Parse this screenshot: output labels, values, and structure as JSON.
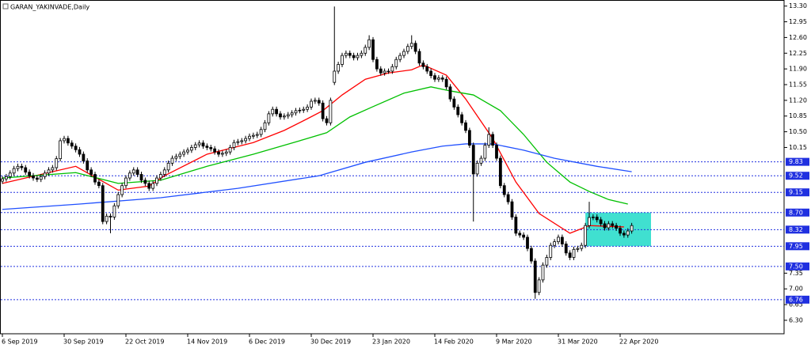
{
  "chart_data": {
    "type": "candlestick",
    "title": "GARAN_YAKINVADE,Daily",
    "categories": [
      "6 Sep 2019",
      null,
      null,
      null,
      null,
      null,
      null,
      null,
      null,
      null,
      null,
      null,
      null,
      null,
      null,
      null,
      "30 Sep 2019",
      null,
      null,
      null,
      null,
      null,
      null,
      null,
      null,
      null,
      null,
      null,
      null,
      null,
      null,
      null,
      "22 Oct 2019",
      null,
      null,
      null,
      null,
      null,
      null,
      null,
      null,
      null,
      null,
      null,
      null,
      null,
      null,
      null,
      "14 Nov 2019",
      null,
      null,
      null,
      null,
      null,
      null,
      null,
      null,
      null,
      null,
      null,
      null,
      null,
      null,
      null,
      "6 Dec 2019",
      null,
      null,
      null,
      null,
      null,
      null,
      null,
      null,
      null,
      null,
      null,
      null,
      null,
      null,
      null,
      "30 Dec 2019",
      null,
      null,
      null,
      null,
      null,
      null,
      null,
      null,
      null,
      null,
      null,
      null,
      null,
      null,
      null,
      "23 Jan 2020",
      null,
      null,
      null,
      null,
      null,
      null,
      null,
      null,
      null,
      null,
      null,
      null,
      null,
      null,
      null,
      "14 Feb 2020",
      null,
      null,
      null,
      null,
      null,
      null,
      null,
      null,
      null,
      null,
      null,
      null,
      null,
      null,
      null,
      "9 Mar 2020",
      null,
      null,
      null,
      null,
      null,
      null,
      null,
      null,
      null,
      null,
      null,
      null,
      null,
      null,
      null,
      "31 Mar 2020",
      null,
      null,
      null,
      null,
      null,
      null,
      null,
      null,
      null,
      null,
      null,
      null,
      null,
      null,
      null,
      "22 Apr 2020",
      null,
      null,
      null
    ],
    "open": [
      9.4,
      9.45,
      9.5,
      9.58,
      9.68,
      9.73,
      9.7,
      9.6,
      9.52,
      9.47,
      9.44,
      9.5,
      9.58,
      9.65,
      9.7,
      9.9,
      10.3,
      10.35,
      10.25,
      10.18,
      10.1,
      10.0,
      9.85,
      9.65,
      9.55,
      9.38,
      9.3,
      8.5,
      8.62,
      8.6,
      8.85,
      9.1,
      9.3,
      9.47,
      9.58,
      9.65,
      9.55,
      9.42,
      9.35,
      9.24,
      9.35,
      9.47,
      9.55,
      9.65,
      9.8,
      9.91,
      9.95,
      10.0,
      10.05,
      10.09,
      10.15,
      10.21,
      10.25,
      10.18,
      10.15,
      10.12,
      10.05,
      10.0,
      10.02,
      10.05,
      10.15,
      10.26,
      10.28,
      10.3,
      10.35,
      10.4,
      10.42,
      10.44,
      10.55,
      10.7,
      10.9,
      11.0,
      10.9,
      10.83,
      10.85,
      10.88,
      10.92,
      10.97,
      10.98,
      11.0,
      11.05,
      11.18,
      11.2,
      11.14,
      10.79,
      10.7,
      11.6,
      11.85,
      12.0,
      12.2,
      12.25,
      12.2,
      12.15,
      12.2,
      12.25,
      12.38,
      12.55,
      12.11,
      11.9,
      11.81,
      11.85,
      11.85,
      11.95,
      12.11,
      12.2,
      12.29,
      12.4,
      12.47,
      12.29,
      12.03,
      11.95,
      11.85,
      11.75,
      11.67,
      11.7,
      11.67,
      11.5,
      11.23,
      11.05,
      10.88,
      10.7,
      10.53,
      10.2,
      9.56,
      9.8,
      9.91,
      10.2,
      10.44,
      10.2,
      9.91,
      9.3,
      9.1,
      8.94,
      8.6,
      8.24,
      8.2,
      8.15,
      7.9,
      7.62,
      6.92,
      7.2,
      7.53,
      7.7,
      7.97,
      8.05,
      8.15,
      8.0,
      7.8,
      7.7,
      7.88,
      7.9,
      7.97,
      8.41,
      8.59,
      8.6,
      8.54,
      8.45,
      8.36,
      8.45,
      8.41,
      8.35,
      8.24,
      8.2,
      8.29
    ],
    "high": [
      9.51,
      9.56,
      9.64,
      9.74,
      9.79,
      9.79,
      9.76,
      9.66,
      9.58,
      9.53,
      9.56,
      9.64,
      9.71,
      9.76,
      9.96,
      10.36,
      10.41,
      10.41,
      10.31,
      10.24,
      10.16,
      10.06,
      9.91,
      9.71,
      9.61,
      9.44,
      9.36,
      8.68,
      8.68,
      8.91,
      9.16,
      9.36,
      9.53,
      9.64,
      9.71,
      9.71,
      9.61,
      9.48,
      9.41,
      9.41,
      9.53,
      9.61,
      9.71,
      9.86,
      9.97,
      10.01,
      10.06,
      10.11,
      10.15,
      10.21,
      10.27,
      10.31,
      10.31,
      10.24,
      10.21,
      10.18,
      10.11,
      10.08,
      10.11,
      10.21,
      10.32,
      10.34,
      10.36,
      10.41,
      10.46,
      10.48,
      10.5,
      10.61,
      10.76,
      10.96,
      11.06,
      11.06,
      10.96,
      10.91,
      10.94,
      10.98,
      11.03,
      11.04,
      11.06,
      11.11,
      11.24,
      11.26,
      11.26,
      11.2,
      10.85,
      11.26,
      13.29,
      12.06,
      12.26,
      12.31,
      12.31,
      12.26,
      12.26,
      12.31,
      12.44,
      12.65,
      12.61,
      12.17,
      11.96,
      11.91,
      11.91,
      12.01,
      12.17,
      12.26,
      12.35,
      12.46,
      12.65,
      12.53,
      12.35,
      12.09,
      12.01,
      11.91,
      11.81,
      11.76,
      11.76,
      11.73,
      11.56,
      11.29,
      11.11,
      10.94,
      10.76,
      10.59,
      10.26,
      9.86,
      9.97,
      10.26,
      10.6,
      10.5,
      10.26,
      9.97,
      9.36,
      9.16,
      9.0,
      8.66,
      8.3,
      8.26,
      8.21,
      7.96,
      7.68,
      7.26,
      7.59,
      7.76,
      8.03,
      8.11,
      8.21,
      8.21,
      8.06,
      7.86,
      7.94,
      7.96,
      8.03,
      8.47,
      8.94,
      8.66,
      8.66,
      8.6,
      8.51,
      8.51,
      8.51,
      8.47,
      8.41,
      8.3,
      8.35,
      8.47
    ],
    "low": [
      9.34,
      9.39,
      9.44,
      9.52,
      9.62,
      9.64,
      9.54,
      9.46,
      9.41,
      9.38,
      9.38,
      9.44,
      9.52,
      9.59,
      9.64,
      9.84,
      10.24,
      10.19,
      10.12,
      10.04,
      9.94,
      9.79,
      9.59,
      9.49,
      9.32,
      9.24,
      8.44,
      8.44,
      8.24,
      8.54,
      8.79,
      9.04,
      9.24,
      9.41,
      9.52,
      9.49,
      9.36,
      9.29,
      9.18,
      9.18,
      9.29,
      9.41,
      9.49,
      9.59,
      9.74,
      9.85,
      9.89,
      9.94,
      9.99,
      10.03,
      10.09,
      10.15,
      10.12,
      10.09,
      10.06,
      9.99,
      9.94,
      9.94,
      9.96,
      9.99,
      10.09,
      10.2,
      10.22,
      10.24,
      10.29,
      10.34,
      10.36,
      10.38,
      10.49,
      10.64,
      10.84,
      10.84,
      10.77,
      10.77,
      10.79,
      10.82,
      10.86,
      10.91,
      10.92,
      10.94,
      10.99,
      11.12,
      11.08,
      10.73,
      10.64,
      10.64,
      11.54,
      11.79,
      11.94,
      12.14,
      12.14,
      12.09,
      12.09,
      12.14,
      12.19,
      12.32,
      12.05,
      11.84,
      11.75,
      11.75,
      11.79,
      11.79,
      11.89,
      12.05,
      12.14,
      12.23,
      12.34,
      12.23,
      11.97,
      11.89,
      11.79,
      11.69,
      11.61,
      11.61,
      11.61,
      11.44,
      11.17,
      10.99,
      10.82,
      10.64,
      10.47,
      10.14,
      8.5,
      9.5,
      9.74,
      9.85,
      10.14,
      10.14,
      9.85,
      9.24,
      9.04,
      8.88,
      8.54,
      8.18,
      8.14,
      8.09,
      7.84,
      7.56,
      6.78,
      6.86,
      7.14,
      7.47,
      7.64,
      7.91,
      7.99,
      7.94,
      7.74,
      7.64,
      7.64,
      7.82,
      7.84,
      7.91,
      8.35,
      8.53,
      8.48,
      8.39,
      8.3,
      8.3,
      8.35,
      8.29,
      8.18,
      8.14,
      8.14,
      8.23
    ],
    "close": [
      9.45,
      9.5,
      9.58,
      9.68,
      9.73,
      9.7,
      9.6,
      9.52,
      9.47,
      9.44,
      9.5,
      9.58,
      9.65,
      9.7,
      9.9,
      10.3,
      10.35,
      10.25,
      10.18,
      10.1,
      10.0,
      9.85,
      9.65,
      9.55,
      9.38,
      9.3,
      8.5,
      8.62,
      8.6,
      8.85,
      9.1,
      9.3,
      9.47,
      9.58,
      9.65,
      9.55,
      9.42,
      9.35,
      9.24,
      9.35,
      9.47,
      9.55,
      9.65,
      9.8,
      9.91,
      9.95,
      10.0,
      10.05,
      10.09,
      10.15,
      10.21,
      10.25,
      10.18,
      10.15,
      10.12,
      10.05,
      10.0,
      10.02,
      10.05,
      10.15,
      10.26,
      10.28,
      10.3,
      10.35,
      10.4,
      10.42,
      10.44,
      10.55,
      10.7,
      10.9,
      11.0,
      10.9,
      10.83,
      10.85,
      10.88,
      10.92,
      10.97,
      10.98,
      11.0,
      11.05,
      11.18,
      11.2,
      11.14,
      10.79,
      10.7,
      11.2,
      11.85,
      12.0,
      12.2,
      12.25,
      12.2,
      12.15,
      12.2,
      12.25,
      12.38,
      12.55,
      12.11,
      11.9,
      11.81,
      11.85,
      11.85,
      11.95,
      12.11,
      12.2,
      12.29,
      12.4,
      12.47,
      12.29,
      12.03,
      11.95,
      11.85,
      11.75,
      11.67,
      11.7,
      11.67,
      11.5,
      11.23,
      11.05,
      10.88,
      10.7,
      10.53,
      10.2,
      9.56,
      9.8,
      9.91,
      10.2,
      10.44,
      10.2,
      9.91,
      9.3,
      9.1,
      8.94,
      8.6,
      8.24,
      8.2,
      8.15,
      7.9,
      7.62,
      6.92,
      7.2,
      7.53,
      7.7,
      7.97,
      8.05,
      8.15,
      8.0,
      7.8,
      7.7,
      7.88,
      7.9,
      7.97,
      8.41,
      8.59,
      8.6,
      8.54,
      8.45,
      8.36,
      8.45,
      8.41,
      8.35,
      8.24,
      8.2,
      8.29,
      8.41
    ],
    "moving_averages": [
      {
        "color": "#ff0000",
        "x": [
          0,
          19,
          30,
          38,
          42,
          53,
          65,
          73,
          79,
          83,
          88,
          94,
          100,
          106,
          109,
          115,
          120,
          127,
          133,
          139,
          147,
          152,
          161
        ],
        "values": [
          9.35,
          9.73,
          9.2,
          9.29,
          9.52,
          10.0,
          10.26,
          10.53,
          10.79,
          10.97,
          11.32,
          11.67,
          11.81,
          11.88,
          11.99,
          11.76,
          11.23,
          10.35,
          9.38,
          8.68,
          8.24,
          8.41,
          8.38
        ]
      },
      {
        "color": "#00c000",
        "x": [
          0,
          19,
          30,
          41,
          53,
          65,
          77,
          84,
          90,
          96,
          104,
          111,
          116,
          122,
          129,
          135,
          141,
          147,
          152,
          157,
          162
        ],
        "values": [
          9.47,
          9.59,
          9.35,
          9.42,
          9.73,
          10.0,
          10.3,
          10.48,
          10.83,
          11.06,
          11.36,
          11.5,
          11.41,
          11.32,
          10.97,
          10.44,
          9.82,
          9.38,
          9.17,
          8.99,
          8.89
        ]
      },
      {
        "color": "#2050ff",
        "x": [
          0,
          20,
          41,
          61,
          82,
          94,
          106,
          114,
          120,
          127,
          135,
          143,
          154,
          163
        ],
        "values": [
          8.77,
          8.89,
          9.03,
          9.24,
          9.52,
          9.82,
          10.05,
          10.18,
          10.23,
          10.23,
          10.09,
          9.91,
          9.73,
          9.61
        ]
      }
    ],
    "highlight": {
      "xlim": [
        151,
        168
      ],
      "ylim": [
        7.95,
        8.7
      ],
      "color": "#40e0d0"
    },
    "ylim": [
      6.0,
      13.4
    ],
    "yticks": [
      {
        "value": 13.3,
        "label": "13.30"
      },
      12.95,
      {
        "value": 12.6,
        "label": "12.60"
      },
      12.25,
      {
        "value": 11.9,
        "label": "11.90"
      },
      11.55,
      {
        "value": 11.2,
        "label": "11.20"
      },
      10.85,
      {
        "value": 10.5,
        "label": "10.50"
      },
      10.15,
      7.35,
      {
        "value": 7.0,
        "label": "7.00"
      },
      6.65,
      {
        "value": 6.3,
        "label": "6.30"
      }
    ],
    "levels": [
      9.83,
      9.52,
      9.15,
      {
        "value": 8.7,
        "label": "8.70"
      },
      8.32,
      7.95,
      {
        "value": 7.5,
        "label": "7.50"
      },
      6.76
    ],
    "level_color": "#2030e0",
    "bull_color": "#ffffff",
    "bear_color": "#000000"
  }
}
